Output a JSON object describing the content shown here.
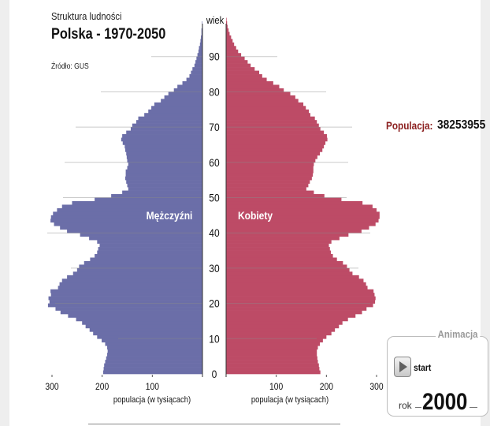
{
  "header": {
    "subtitle": "Struktura ludności",
    "title": "Polska - 1970-2050",
    "source": "Źródło: GUS"
  },
  "population": {
    "label": "Populacja:",
    "value": "38253955"
  },
  "animation": {
    "title": "Animacja",
    "start_label": "start",
    "year_label": "rok",
    "year": "2000"
  },
  "colors": {
    "male": "#6b6ea8",
    "female": "#bd4b66",
    "population_label": "#8b1f1f"
  },
  "chart_data": {
    "type": "bar",
    "orientation": "horizontal-population-pyramid",
    "y_axis_label": "wiek",
    "y_ticks": [
      0,
      10,
      20,
      30,
      40,
      50,
      60,
      70,
      80,
      90
    ],
    "y_range": [
      0,
      100
    ],
    "x_ticks": [
      300,
      200,
      100
    ],
    "x_range": [
      0,
      300
    ],
    "x_axis_label_left": "populacja (w tysiącach)",
    "x_axis_label_right": "populacja (w tysiącach)",
    "series": [
      {
        "name": "Mężczyźni",
        "values": [
          198,
          197,
          196,
          194,
          192,
          190,
          189,
          190,
          194,
          201,
          210,
          218,
          225,
          233,
          240,
          252,
          268,
          283,
          293,
          308,
          305,
          307,
          302,
          303,
          288,
          285,
          280,
          270,
          258,
          250,
          246,
          236,
          224,
          215,
          210,
          208,
          205,
          210,
          226,
          244,
          270,
          284,
          296,
          303,
          302,
          298,
          290,
          280,
          260,
          215,
          182,
          160,
          148,
          150,
          152,
          154,
          153,
          153,
          150,
          148,
          150,
          151,
          152,
          154,
          155,
          159,
          162,
          160,
          152,
          143,
          140,
          132,
          128,
          116,
          108,
          102,
          96,
          83,
          76,
          68,
          57,
          50,
          40,
          32,
          26,
          23,
          20,
          16,
          14,
          12,
          10,
          8,
          7,
          5,
          4,
          3,
          2,
          2,
          1,
          1,
          0
        ]
      },
      {
        "name": "Kobiety",
        "values": [
          188,
          186,
          185,
          183,
          182,
          181,
          181,
          183,
          187,
          193,
          200,
          210,
          217,
          225,
          232,
          243,
          258,
          271,
          280,
          293,
          297,
          298,
          296,
          294,
          282,
          279,
          274,
          265,
          252,
          246,
          241,
          233,
          221,
          213,
          209,
          207,
          205,
          210,
          226,
          244,
          270,
          285,
          298,
          304,
          306,
          306,
          300,
          292,
          272,
          230,
          196,
          175,
          160,
          164,
          167,
          171,
          173,
          174,
          174,
          175,
          178,
          182,
          187,
          192,
          195,
          198,
          202,
          201,
          195,
          188,
          185,
          181,
          177,
          168,
          165,
          159,
          154,
          144,
          138,
          128,
          115,
          106,
          94,
          81,
          72,
          66,
          57,
          49,
          43,
          37,
          30,
          24,
          20,
          16,
          13,
          10,
          7,
          5,
          3,
          2,
          1
        ]
      }
    ],
    "inner_labels": {
      "male": "Mężczyźni",
      "female": "Kobiety"
    }
  }
}
